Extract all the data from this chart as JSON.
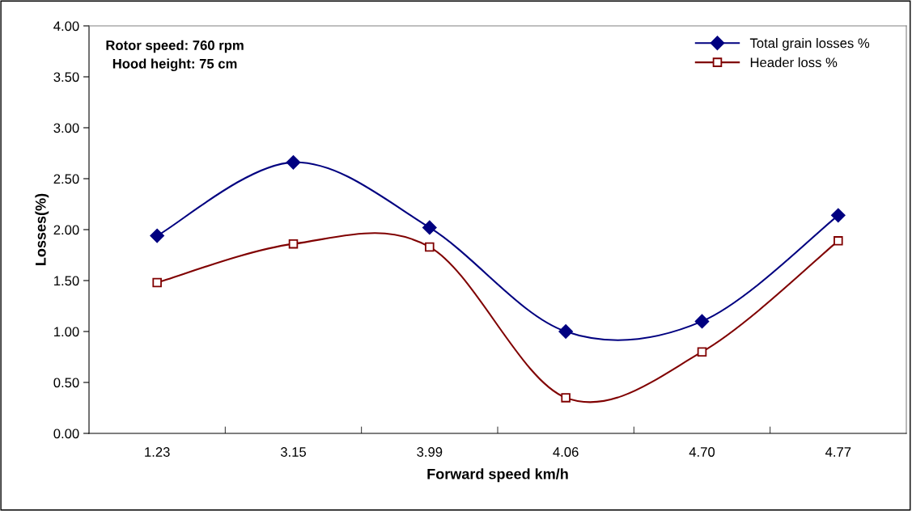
{
  "chart_data": {
    "type": "line",
    "xlabel": "Forward speed km/h",
    "ylabel": "Losses(%)",
    "categories": [
      "1.23",
      "3.15",
      "3.99",
      "4.06",
      "4.70",
      "4.77"
    ],
    "series": [
      {
        "name": "Total grain losses %",
        "color": "#000080",
        "marker": "diamond",
        "values": [
          1.94,
          2.66,
          2.02,
          1.0,
          1.1,
          2.14
        ]
      },
      {
        "name": "Header loss %",
        "color": "#800000",
        "marker": "square",
        "values": [
          1.48,
          1.86,
          1.83,
          0.35,
          0.8,
          1.89
        ]
      }
    ],
    "ylim": [
      0,
      4
    ],
    "yticks": [
      {
        "value": 0,
        "label": "0.00"
      },
      {
        "value": 0.5,
        "label": "0.50"
      },
      {
        "value": 1,
        "label": "1.00"
      },
      {
        "value": 1.5,
        "label": "1.50"
      },
      {
        "value": 2,
        "label": "2.00"
      },
      {
        "value": 2.5,
        "label": "2.50"
      },
      {
        "value": 3,
        "label": "3.00"
      },
      {
        "value": 3.5,
        "label": "3.50"
      },
      {
        "value": 4,
        "label": "4.00"
      }
    ],
    "grid": false,
    "legend": "top right",
    "line_style": "solid",
    "annotations": [
      "Rotor speed: 760 rpm\nHood height: 75 cm"
    ]
  }
}
